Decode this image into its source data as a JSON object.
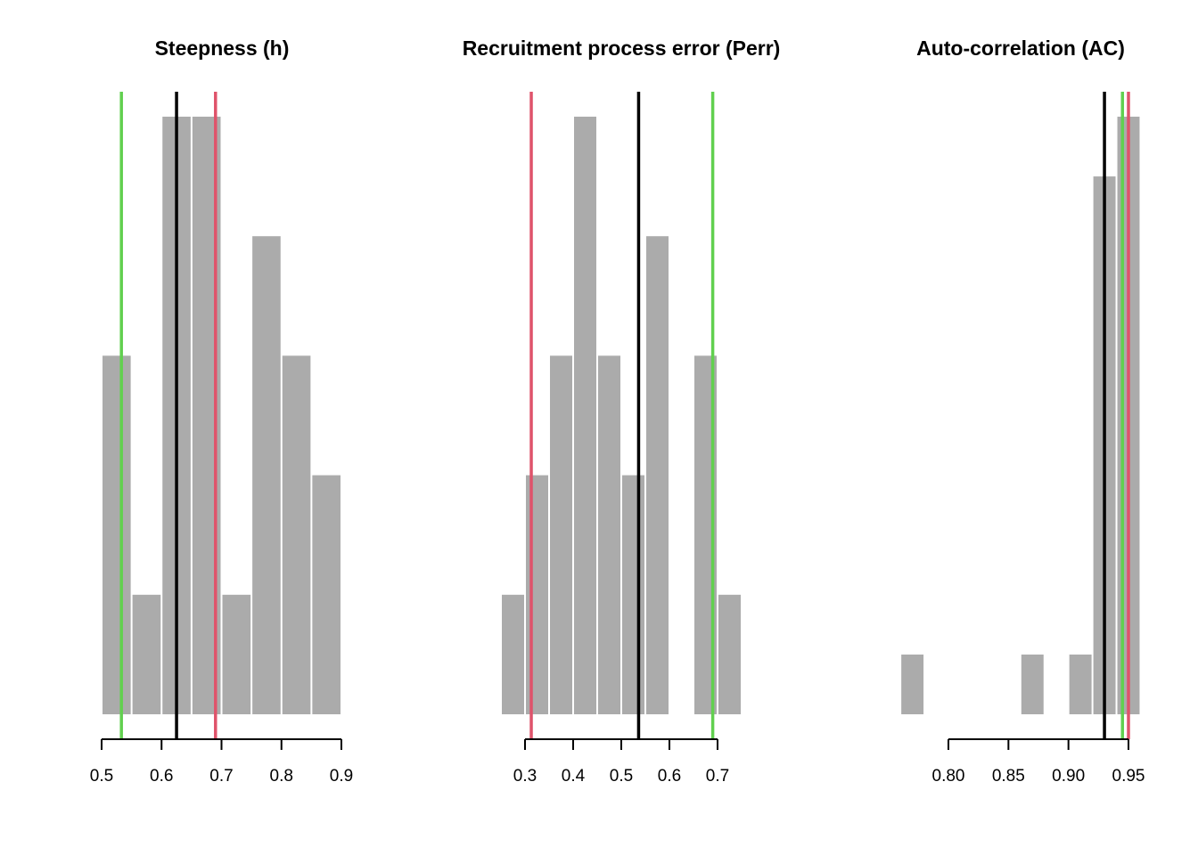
{
  "chart_data": [
    {
      "type": "bar",
      "title": "Steepness (h)",
      "xlim": [
        0.5,
        0.9
      ],
      "ticks": [
        0.5,
        0.6,
        0.7,
        0.8,
        0.9
      ],
      "tick_labels": [
        "0.5",
        "0.6",
        "0.7",
        "0.8",
        "0.9"
      ],
      "bin_width": 0.05,
      "bins": [
        {
          "start": 0.5,
          "count": 3
        },
        {
          "start": 0.55,
          "count": 1
        },
        {
          "start": 0.6,
          "count": 5
        },
        {
          "start": 0.65,
          "count": 5
        },
        {
          "start": 0.7,
          "count": 1
        },
        {
          "start": 0.75,
          "count": 4
        },
        {
          "start": 0.8,
          "count": 3
        },
        {
          "start": 0.85,
          "count": 2
        }
      ],
      "ymax": 5,
      "vlines": [
        {
          "x": 0.533,
          "color": "#61D04F"
        },
        {
          "x": 0.625,
          "color": "#000000"
        },
        {
          "x": 0.69,
          "color": "#DF536B"
        }
      ]
    },
    {
      "type": "bar",
      "title": "Recruitment process error (Perr)",
      "xlim": [
        0.3,
        0.7
      ],
      "ticks": [
        0.3,
        0.4,
        0.5,
        0.6,
        0.7
      ],
      "tick_labels": [
        "0.3",
        "0.4",
        "0.5",
        "0.6",
        "0.7"
      ],
      "bin_width": 0.05,
      "bins": [
        {
          "start": 0.25,
          "count": 1
        },
        {
          "start": 0.3,
          "count": 2
        },
        {
          "start": 0.35,
          "count": 3
        },
        {
          "start": 0.4,
          "count": 5
        },
        {
          "start": 0.45,
          "count": 3
        },
        {
          "start": 0.5,
          "count": 2
        },
        {
          "start": 0.55,
          "count": 4
        },
        {
          "start": 0.6,
          "count": 0
        },
        {
          "start": 0.65,
          "count": 3
        },
        {
          "start": 0.7,
          "count": 1
        }
      ],
      "ymax": 5,
      "vlines": [
        {
          "x": 0.313,
          "color": "#DF536B"
        },
        {
          "x": 0.536,
          "color": "#000000"
        },
        {
          "x": 0.69,
          "color": "#61D04F"
        }
      ]
    },
    {
      "type": "bar",
      "title": "Auto-correlation (AC)",
      "xlim": [
        0.8,
        0.95
      ],
      "ticks": [
        0.8,
        0.85,
        0.9,
        0.95
      ],
      "tick_labels": [
        "0.80",
        "0.85",
        "0.90",
        "0.95"
      ],
      "bin_width": 0.02,
      "bins": [
        {
          "start": 0.76,
          "count": 1
        },
        {
          "start": 0.78,
          "count": 0
        },
        {
          "start": 0.8,
          "count": 0
        },
        {
          "start": 0.82,
          "count": 0
        },
        {
          "start": 0.84,
          "count": 0
        },
        {
          "start": 0.86,
          "count": 1
        },
        {
          "start": 0.88,
          "count": 0
        },
        {
          "start": 0.9,
          "count": 1
        },
        {
          "start": 0.92,
          "count": 9
        },
        {
          "start": 0.94,
          "count": 10
        }
      ],
      "ymax": 10,
      "vlines": [
        {
          "x": 0.93,
          "color": "#000000"
        },
        {
          "x": 0.945,
          "color": "#61D04F"
        },
        {
          "x": 0.95,
          "color": "#DF536B"
        }
      ]
    }
  ]
}
